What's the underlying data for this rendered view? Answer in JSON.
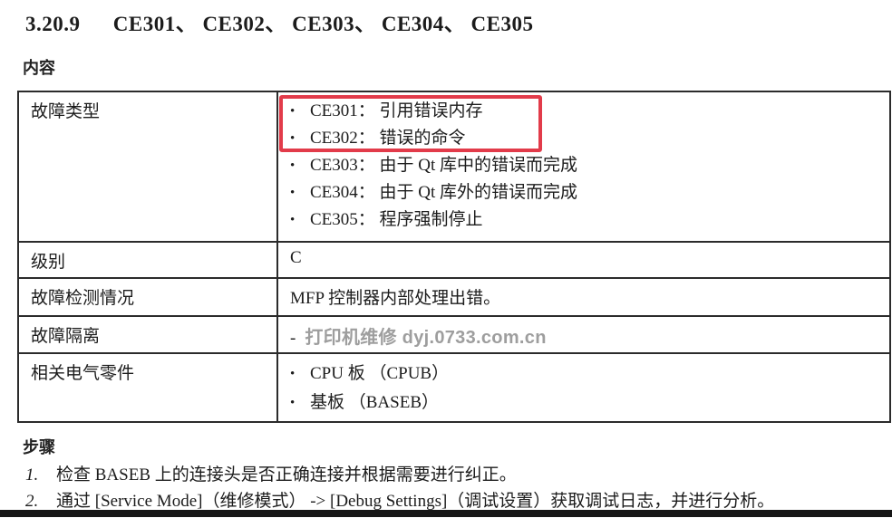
{
  "doc": {
    "section_number": "3.20.9",
    "section_codes": "CE301、 CE302、 CE303、 CE304、 CE305",
    "content_heading": "内容",
    "steps_heading": "步骤"
  },
  "glyphs": {
    "bullet": "•"
  },
  "table": {
    "rows": [
      {
        "label": "故障类型",
        "items": [
          "CE301： 引用错误内存",
          "CE302： 错误的命令",
          "CE303： 由于 Qt 库中的错误而完成",
          "CE304： 由于 Qt 库外的错误而完成",
          "CE305： 程序强制停止"
        ]
      },
      {
        "label": "级别",
        "value": "C"
      },
      {
        "label": "故障检测情况",
        "value": "MFP 控制器内部处理出错。"
      },
      {
        "label": "故障隔离",
        "value": "-",
        "watermark": "打印机维修 dyj.0733.com.cn"
      },
      {
        "label": "相关电气零件",
        "items": [
          "CPU 板 （CPUB）",
          "基板 （BASEB）"
        ]
      }
    ]
  },
  "steps": [
    {
      "num": "1.",
      "text": "检查 BASEB 上的连接头是否正确连接并根据需要进行纠正。"
    },
    {
      "num": "2.",
      "text": "通过 [Service Mode]（维修模式） -> [Debug Settings]（调试设置）获取调试日志，并进行分析。"
    }
  ],
  "colors": {
    "highlight_box_red": "#e23b4a",
    "watermark_gray": "#9e9e9e"
  }
}
